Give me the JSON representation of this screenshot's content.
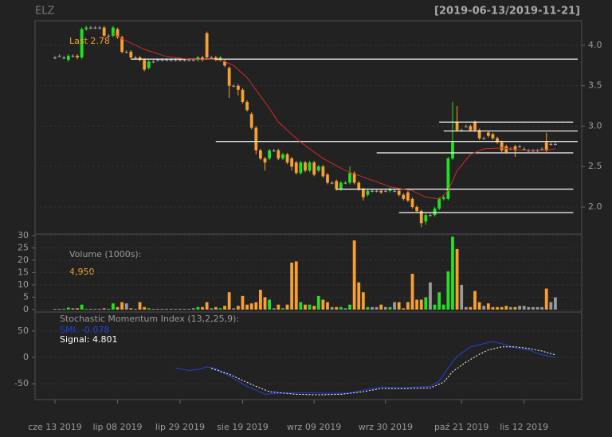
{
  "chart_data": [
    {
      "type": "candlestick",
      "title": "ELZ",
      "subtitle": "[2019-06-13/2019-11-21]",
      "last_label": "Last",
      "last": 2.78,
      "up_color": "#22e022",
      "down_color": "#f5a030",
      "flat_color": "#9a9a9a",
      "xlim": [
        -4.46,
        117.9
      ],
      "xticks": [
        {
          "value": 0,
          "label": "cze 13 2019"
        },
        {
          "value": 14,
          "label": "lip 08 2019"
        },
        {
          "value": 28,
          "label": "lip 29 2019"
        },
        {
          "value": 42,
          "label": "sie 19 2019"
        },
        {
          "value": 58,
          "label": "wrz 09 2019"
        },
        {
          "value": 74,
          "label": "wrz 30 2019"
        },
        {
          "value": 91,
          "label": "paź 21 2019"
        },
        {
          "value": 105,
          "label": "lis 12 2019"
        }
      ],
      "ylim": [
        1.665,
        4.305
      ],
      "yticks": [
        {
          "value": 4,
          "label": "4.0"
        },
        3.5,
        {
          "value": 3,
          "label": "3.0"
        },
        2.5,
        {
          "value": 2,
          "label": "2.0"
        }
      ],
      "grid": true,
      "open": [
        3.85,
        3.87,
        3.85,
        3.82,
        3.87,
        3.87,
        3.85,
        4.2,
        4.22,
        4.22,
        4.22,
        4.22,
        4.12,
        4.12,
        4.2,
        4.1,
        3.92,
        3.92,
        3.85,
        3.85,
        3.82,
        3.72,
        3.8,
        3.82,
        3.82,
        3.82,
        3.82,
        3.82,
        3.82,
        3.82,
        3.82,
        3.82,
        3.82,
        3.85,
        4.15,
        3.85,
        3.85,
        3.82,
        3.8,
        3.72,
        3.5,
        3.5,
        3.45,
        3.3,
        3.15,
        2.98,
        2.7,
        2.6,
        2.6,
        2.7,
        2.7,
        2.6,
        2.65,
        2.6,
        2.55,
        2.42,
        2.55,
        2.45,
        2.55,
        2.45,
        2.5,
        2.4,
        2.3,
        2.32,
        2.22,
        2.3,
        2.3,
        2.42,
        2.3,
        2.22,
        2.15,
        2.2,
        2.2,
        2.2,
        2.2,
        2.2,
        2.2,
        2.2,
        2.15,
        2.18,
        2.1,
        2.0,
        1.95,
        1.82,
        1.9,
        1.9,
        1.98,
        2.1,
        2.1,
        2.6,
        3.05,
        2.95,
        3.0,
        3.0,
        3.05,
        2.95,
        2.85,
        2.92,
        2.9,
        2.85,
        2.8,
        2.75,
        2.72,
        2.75,
        2.75,
        2.72,
        2.7,
        2.7,
        2.7,
        2.72,
        2.8,
        2.78,
        2.78
      ],
      "high": [
        3.87,
        3.89,
        3.87,
        3.89,
        3.89,
        3.89,
        4.22,
        4.24,
        4.24,
        4.24,
        4.24,
        4.24,
        4.14,
        4.24,
        4.22,
        4.12,
        3.94,
        3.94,
        3.87,
        3.87,
        3.84,
        3.82,
        3.82,
        3.84,
        3.84,
        3.84,
        3.84,
        3.84,
        3.84,
        3.84,
        3.84,
        3.84,
        3.87,
        3.87,
        4.17,
        3.87,
        3.87,
        3.87,
        3.82,
        3.74,
        3.52,
        3.52,
        3.47,
        3.32,
        3.17,
        3.0,
        2.72,
        2.62,
        2.72,
        2.72,
        2.72,
        2.67,
        2.67,
        2.62,
        2.57,
        2.57,
        2.57,
        2.57,
        2.57,
        2.52,
        2.52,
        2.42,
        2.32,
        2.34,
        2.32,
        2.32,
        2.5,
        2.44,
        2.32,
        2.24,
        2.22,
        2.22,
        2.22,
        2.22,
        2.22,
        2.24,
        2.22,
        2.22,
        2.17,
        2.2,
        2.12,
        2.02,
        1.97,
        1.92,
        1.92,
        2.0,
        2.12,
        2.14,
        2.62,
        3.3,
        3.25,
        2.97,
        3.02,
        3.02,
        3.07,
        2.97,
        2.87,
        2.94,
        2.92,
        2.87,
        2.82,
        2.77,
        2.74,
        2.77,
        2.77,
        2.74,
        2.72,
        2.72,
        2.72,
        2.74,
        2.92,
        2.8,
        2.8
      ],
      "low": [
        3.83,
        3.85,
        3.83,
        3.8,
        3.85,
        3.83,
        3.83,
        4.18,
        4.2,
        4.2,
        4.2,
        4.1,
        4.1,
        4.1,
        4.08,
        3.9,
        3.9,
        3.83,
        3.83,
        3.8,
        3.68,
        3.7,
        3.78,
        3.8,
        3.8,
        3.8,
        3.8,
        3.8,
        3.8,
        3.8,
        3.8,
        3.8,
        3.8,
        3.8,
        3.83,
        3.83,
        3.8,
        3.8,
        3.73,
        3.35,
        3.48,
        3.38,
        3.28,
        3.18,
        2.96,
        2.65,
        2.58,
        2.45,
        2.58,
        2.68,
        2.58,
        2.58,
        2.53,
        2.45,
        2.4,
        2.4,
        2.43,
        2.43,
        2.38,
        2.43,
        2.36,
        2.28,
        2.28,
        2.2,
        2.2,
        2.28,
        2.28,
        2.28,
        2.2,
        2.08,
        2.13,
        2.18,
        2.18,
        2.16,
        2.18,
        2.18,
        2.18,
        2.13,
        2.08,
        2.06,
        1.98,
        1.93,
        1.75,
        1.78,
        1.88,
        1.88,
        1.96,
        2.08,
        2.08,
        2.58,
        2.93,
        2.93,
        2.98,
        2.93,
        2.93,
        2.83,
        2.83,
        2.86,
        2.83,
        2.78,
        2.68,
        2.66,
        2.7,
        2.62,
        2.73,
        2.7,
        2.68,
        2.68,
        2.68,
        2.7,
        2.68,
        2.76,
        2.76
      ],
      "close": [
        3.85,
        3.87,
        3.85,
        3.87,
        3.87,
        3.85,
        4.2,
        4.22,
        4.22,
        4.22,
        4.22,
        4.12,
        4.12,
        4.22,
        4.1,
        3.92,
        3.92,
        3.85,
        3.85,
        3.82,
        3.7,
        3.8,
        3.8,
        3.82,
        3.82,
        3.82,
        3.82,
        3.82,
        3.82,
        3.82,
        3.82,
        3.82,
        3.85,
        3.82,
        3.85,
        3.85,
        3.82,
        3.85,
        3.75,
        3.5,
        3.5,
        3.45,
        3.3,
        3.2,
        2.98,
        2.7,
        2.6,
        2.55,
        2.7,
        2.7,
        2.6,
        2.65,
        2.55,
        2.5,
        2.42,
        2.55,
        2.45,
        2.55,
        2.4,
        2.5,
        2.38,
        2.3,
        2.3,
        2.22,
        2.3,
        2.3,
        2.42,
        2.3,
        2.22,
        2.12,
        2.2,
        2.2,
        2.2,
        2.18,
        2.2,
        2.22,
        2.2,
        2.15,
        2.1,
        2.08,
        2.0,
        1.95,
        1.8,
        1.9,
        1.9,
        1.98,
        2.1,
        2.12,
        2.6,
        2.8,
        2.95,
        2.95,
        3.0,
        2.95,
        2.95,
        2.85,
        2.85,
        2.88,
        2.85,
        2.8,
        2.7,
        2.68,
        2.72,
        2.7,
        2.75,
        2.72,
        2.7,
        2.7,
        2.7,
        2.72,
        2.7,
        2.78,
        2.78
      ],
      "ma": {
        "color": "#d02a2a",
        "x": [
          13,
          15,
          20,
          25,
          30,
          35,
          38,
          40,
          43,
          45,
          48,
          50,
          55,
          60,
          65,
          70,
          75,
          80,
          83,
          86,
          88,
          90,
          93,
          96,
          100,
          105,
          110,
          112
        ],
        "values": [
          4.15,
          4.08,
          3.95,
          3.86,
          3.83,
          3.83,
          3.8,
          3.75,
          3.6,
          3.45,
          3.22,
          3.05,
          2.8,
          2.6,
          2.45,
          2.35,
          2.25,
          2.2,
          2.12,
          2.1,
          2.2,
          2.45,
          2.65,
          2.72,
          2.73,
          2.7,
          2.7,
          2.72
        ]
      },
      "levels": [
        {
          "value": 3.83,
          "from": 17,
          "to": 117
        },
        {
          "value": 3.05,
          "from": 86,
          "to": 116
        },
        {
          "value": 2.94,
          "from": 87,
          "to": 117
        },
        {
          "value": 2.81,
          "from": 36,
          "to": 117
        },
        {
          "value": 2.67,
          "from": 72,
          "to": 116
        },
        {
          "value": 2.22,
          "from": 63,
          "to": 116
        },
        {
          "value": 1.93,
          "from": 77,
          "to": 116
        }
      ],
      "level_color": "#ffffff"
    },
    {
      "type": "bar",
      "title": "Volume (1000s):",
      "last_label": "4,950",
      "ylim": [
        -1,
        30.6
      ],
      "yticks": [
        0,
        5,
        10,
        15,
        20,
        25,
        30
      ],
      "grid": true,
      "values": [
        0.3,
        0.3,
        0.3,
        0.8,
        0.5,
        0.5,
        2.0,
        0.3,
        0.3,
        0.3,
        0.3,
        0.5,
        0.3,
        2.5,
        1.0,
        3.0,
        2.5,
        0.5,
        0.3,
        3.0,
        1.0,
        0.5,
        0.3,
        0.3,
        0.3,
        0.3,
        0.3,
        0.3,
        0.3,
        0.3,
        0.3,
        0.5,
        1.0,
        1.0,
        3.0,
        0.5,
        1.0,
        0.5,
        1.5,
        7.0,
        0.5,
        1.5,
        5.5,
        2.0,
        2.5,
        3.0,
        8.0,
        5.0,
        4.0,
        0.5,
        2.0,
        0.5,
        2.0,
        19.0,
        19.5,
        3.0,
        2.0,
        2.0,
        1.5,
        5.5,
        4.0,
        3.0,
        1.0,
        1.0,
        1.0,
        0.5,
        2.0,
        28.0,
        11.0,
        7.0,
        1.0,
        1.0,
        1.0,
        2.0,
        1.0,
        1.0,
        3.0,
        3.0,
        0.5,
        3.0,
        14.5,
        4.0,
        4.0,
        5.0,
        11.0,
        2.0,
        7.0,
        2.0,
        15.5,
        29.5,
        24.5,
        10.0,
        1.0,
        1.0,
        7.5,
        3.0,
        1.5,
        2.5,
        1.0,
        1.0,
        1.0,
        1.5,
        1.0,
        1.0,
        1.5,
        1.5,
        1.0,
        1.0,
        1.0,
        1.0,
        8.5,
        3.0,
        4.95
      ]
    },
    {
      "type": "line",
      "title": "Stochastic Momentum Index (13,2,25,9):",
      "ylim": [
        -80,
        86
      ],
      "yticks": [
        50,
        0,
        -50
      ],
      "grid": true,
      "series": [
        {
          "name": "SMI:",
          "last": -0.078,
          "color": "#2340d8",
          "dashed": false,
          "x": [
            27,
            30,
            32,
            34,
            36,
            39,
            43,
            45,
            47,
            50,
            56,
            61,
            66,
            69,
            73,
            77,
            84,
            86,
            88,
            90,
            93,
            96,
            98,
            100,
            103,
            106,
            109,
            112
          ],
          "values": [
            -20,
            -25,
            -23,
            -18,
            -21,
            -35,
            -55,
            -62,
            -70,
            -68,
            -67,
            -68,
            -68,
            -62,
            -56,
            -58,
            -55,
            -45,
            -20,
            2,
            20,
            26,
            30,
            26,
            18,
            14,
            5,
            -0.078
          ]
        },
        {
          "name": "Signal:",
          "last": 4.801,
          "color": "#ffffff",
          "dashed": true,
          "x": [
            35,
            39,
            45,
            48,
            54,
            59,
            64,
            69,
            73,
            79,
            84,
            87,
            89,
            92,
            95,
            97,
            100,
            103,
            106,
            109,
            112
          ],
          "values": [
            -21,
            -32,
            -55,
            -65,
            -70,
            -71,
            -70,
            -65,
            -59,
            -59,
            -58,
            -47,
            -27,
            -9,
            6,
            14,
            20,
            20,
            17,
            12,
            4.801
          ]
        }
      ]
    }
  ]
}
